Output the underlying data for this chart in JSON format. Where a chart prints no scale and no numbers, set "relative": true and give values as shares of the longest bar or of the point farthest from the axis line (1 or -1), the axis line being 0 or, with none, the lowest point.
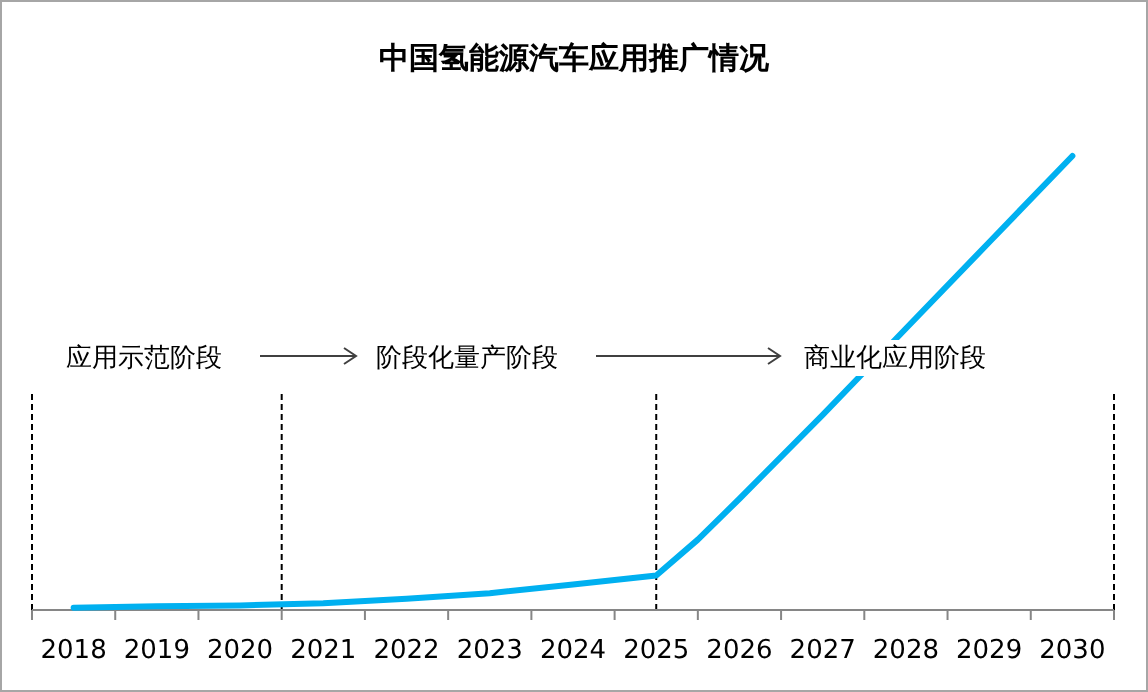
{
  "chart_data": {
    "type": "line",
    "title": "中国氢能源汽车应用推广情况",
    "relative": true,
    "x": [
      2018,
      2019,
      2020,
      2021,
      2022,
      2023,
      2024,
      2025,
      2025.5,
      2026,
      2027,
      2028,
      2029,
      2030
    ],
    "series": [
      {
        "color": "#00b0f0",
        "values": [
          0.005,
          0.008,
          0.01,
          0.015,
          0.025,
          0.037,
          0.056,
          0.076,
          0.155,
          0.245,
          0.43,
          0.62,
          0.81,
          1
        ]
      }
    ],
    "xlim": [
      2017.5,
      2030.5
    ],
    "xticks": [
      {
        "value": 2017.5,
        "label": null
      },
      2018,
      {
        "value": 2018.5,
        "label": null
      },
      2019,
      {
        "value": 2019.5,
        "label": null
      },
      2020,
      {
        "value": 2020.5,
        "label": null
      },
      2021,
      {
        "value": 2021.5,
        "label": null
      },
      2022,
      {
        "value": 2022.5,
        "label": null
      },
      2023,
      {
        "value": 2023.5,
        "label": null
      },
      2024,
      {
        "value": 2024.5,
        "label": null
      },
      2025,
      {
        "value": 2025.5,
        "label": null
      },
      2026,
      {
        "value": 2026.5,
        "label": null
      },
      2027,
      {
        "value": 2027.5,
        "label": null
      },
      2028,
      {
        "value": 2028.5,
        "label": null
      },
      2029,
      {
        "value": 2029.5,
        "label": null
      },
      2030,
      {
        "value": 2030.5,
        "label": null
      }
    ],
    "ref_lines": [
      {
        "axis": "x",
        "value": 2017.5,
        "color": "#000000",
        "line_style": "dashed"
      },
      {
        "axis": "x",
        "value": 2020.5,
        "color": "#000000",
        "line_style": "dashed"
      },
      {
        "axis": "x",
        "value": 2025,
        "color": "#000000",
        "line_style": "dashed"
      },
      {
        "axis": "x",
        "value": 2030.5,
        "color": "#000000",
        "line_style": "dashed"
      }
    ],
    "annotations": [
      "应用示范阶段",
      "阶段化量产阶段",
      "商业化应用阶段"
    ],
    "marker": "none",
    "line_style": "solid",
    "grid": false
  }
}
